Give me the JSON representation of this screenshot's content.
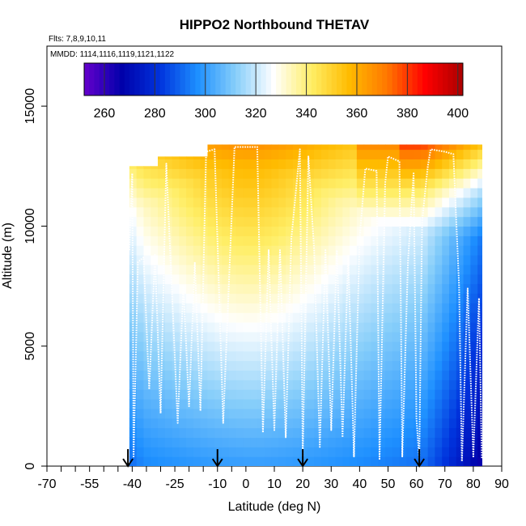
{
  "chart_data": {
    "type": "heatmap",
    "title": "HIPPO2 Northbound THETAV",
    "subtitle_flights": "Flts: 7,8,9,10,11",
    "subtitle_dates": "MMDD: 1114,1116,1119,1121,1122",
    "xlabel": "Latitude (deg N)",
    "ylabel": "Altitude (m)",
    "xlim": [
      -70,
      90
    ],
    "ylim": [
      0,
      17500
    ],
    "xticks": [
      -70,
      -55,
      -40,
      -25,
      -10,
      0,
      10,
      20,
      30,
      40,
      50,
      60,
      70,
      80,
      90
    ],
    "xtick_labels": [
      "-70",
      "-55",
      "-40",
      "-25",
      "-10",
      "0",
      "10",
      "20",
      "30",
      "40",
      "50",
      "60",
      "70",
      "80",
      "90"
    ],
    "x_minor_ticks": [
      -65,
      -60,
      -50,
      -45,
      -35,
      -30,
      -20,
      -15,
      -5
    ],
    "yticks": [
      0,
      5000,
      10000,
      15000
    ],
    "ytick_labels": [
      "0",
      "5000",
      "10000",
      "15000"
    ],
    "colorbar": {
      "range": [
        252,
        402
      ],
      "ticks": [
        260,
        280,
        300,
        320,
        340,
        360,
        380,
        400
      ],
      "tick_labels": [
        "260",
        "280",
        "300",
        "320",
        "340",
        "360",
        "380",
        "400"
      ],
      "palette": [
        "#6600cc",
        "#0000aa",
        "#0033dd",
        "#1e90ff",
        "#87cefa",
        "#ffffff",
        "#ffee66",
        "#ffbb00",
        "#ff7700",
        "#ff0000",
        "#aa0000"
      ]
    },
    "field": {
      "lat_range": [
        -41,
        83
      ],
      "alt_range": [
        0,
        13400
      ],
      "lat_step": 2.5,
      "alt_step": 400,
      "top_profile": [
        {
          "lat": -41,
          "alt": 12500
        },
        {
          "lat": -33,
          "alt": 12500
        },
        {
          "lat": -32,
          "alt": 12900
        },
        {
          "lat": -15,
          "alt": 12900
        },
        {
          "lat": -14,
          "alt": 13400
        },
        {
          "lat": 83,
          "alt": 13400
        }
      ]
    },
    "flight_track": {
      "color": "#ffffff",
      "points": [
        {
          "lat": -41,
          "alt": 9000
        },
        {
          "lat": -40,
          "alt": 12200
        },
        {
          "lat": -39.5,
          "alt": 400
        },
        {
          "lat": -38,
          "alt": 8500
        },
        {
          "lat": -36,
          "alt": 8700
        },
        {
          "lat": -34,
          "alt": 3200
        },
        {
          "lat": -32,
          "alt": 8800
        },
        {
          "lat": -30,
          "alt": 2200
        },
        {
          "lat": -28,
          "alt": 12600
        },
        {
          "lat": -24,
          "alt": 1800
        },
        {
          "lat": -22,
          "alt": 7500
        },
        {
          "lat": -20,
          "alt": 2500
        },
        {
          "lat": -18,
          "alt": 8500
        },
        {
          "lat": -16,
          "alt": 2300
        },
        {
          "lat": -14,
          "alt": 13100
        },
        {
          "lat": -11,
          "alt": 13200
        },
        {
          "lat": -8,
          "alt": 1800
        },
        {
          "lat": -4,
          "alt": 13300
        },
        {
          "lat": 4,
          "alt": 13300
        },
        {
          "lat": 6,
          "alt": 1400
        },
        {
          "lat": 8,
          "alt": 9000
        },
        {
          "lat": 10,
          "alt": 1500
        },
        {
          "lat": 12,
          "alt": 9000
        },
        {
          "lat": 14,
          "alt": 1200
        },
        {
          "lat": 16,
          "alt": 9500
        },
        {
          "lat": 19,
          "alt": 13200
        },
        {
          "lat": 20,
          "alt": 400
        },
        {
          "lat": 22,
          "alt": 12900
        },
        {
          "lat": 24,
          "alt": 9000
        },
        {
          "lat": 26,
          "alt": 800
        },
        {
          "lat": 28,
          "alt": 9000
        },
        {
          "lat": 30,
          "alt": 1500
        },
        {
          "lat": 32,
          "alt": 9000
        },
        {
          "lat": 34,
          "alt": 1200
        },
        {
          "lat": 36,
          "alt": 8800
        },
        {
          "lat": 38,
          "alt": 400
        },
        {
          "lat": 40,
          "alt": 9500
        },
        {
          "lat": 42,
          "alt": 12400
        },
        {
          "lat": 46,
          "alt": 12300
        },
        {
          "lat": 47,
          "alt": 300
        },
        {
          "lat": 49,
          "alt": 11800
        },
        {
          "lat": 50,
          "alt": 12900
        },
        {
          "lat": 54,
          "alt": 12700
        },
        {
          "lat": 55,
          "alt": 400
        },
        {
          "lat": 57,
          "alt": 8500
        },
        {
          "lat": 59,
          "alt": 12200
        },
        {
          "lat": 60,
          "alt": 2000
        },
        {
          "lat": 61,
          "alt": 300
        },
        {
          "lat": 62,
          "alt": 10200
        },
        {
          "lat": 64,
          "alt": 12500
        },
        {
          "lat": 65,
          "alt": 13200
        },
        {
          "lat": 70,
          "alt": 13100
        },
        {
          "lat": 73,
          "alt": 13000
        },
        {
          "lat": 75,
          "alt": 7500
        },
        {
          "lat": 76,
          "alt": 200
        },
        {
          "lat": 78,
          "alt": 7400
        },
        {
          "lat": 80,
          "alt": 400
        },
        {
          "lat": 82,
          "alt": 7000
        },
        {
          "lat": 83,
          "alt": 300
        }
      ]
    },
    "event_markers_lat": [
      -41.5,
      -10,
      20,
      61
    ],
    "marker_color": "#000000"
  }
}
